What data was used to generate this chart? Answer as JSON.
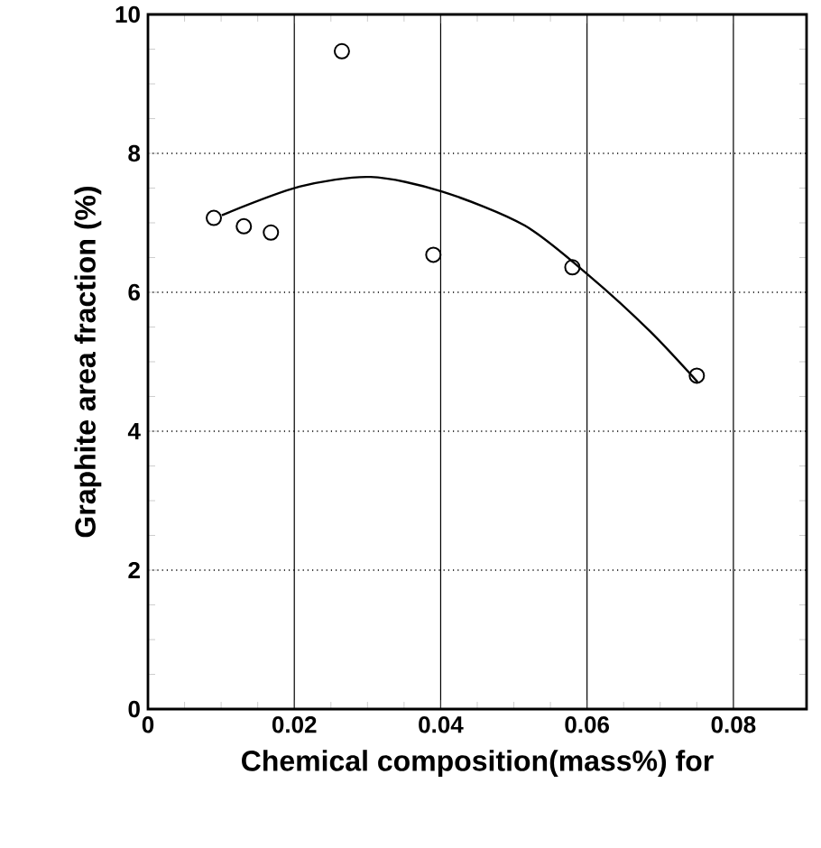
{
  "chart_data": {
    "type": "scatter",
    "xlabel": "Chemical composition(mass%) for",
    "ylabel": "Graphite area fraction (%)",
    "xlim": [
      0,
      0.09
    ],
    "xticks": [
      {
        "value": 0,
        "label": "0"
      },
      0.02,
      0.04,
      0.06,
      0.08
    ],
    "ylim": [
      0,
      10
    ],
    "yticks": [
      0,
      2,
      4,
      6,
      8,
      10
    ],
    "grid": true,
    "series": [
      {
        "marker": "circle",
        "color": "#000000",
        "x": [
          0.009,
          0.0131,
          0.0168,
          0.0265,
          0.039,
          0.058,
          0.075
        ],
        "values": [
          7.07,
          6.95,
          6.86,
          9.47,
          6.54,
          6.36,
          4.8
        ]
      },
      {
        "type": "line",
        "marker": "none",
        "color": "#000000",
        "x": [
          0.0101,
          0.0207,
          0.0304,
          0.0402,
          0.0515,
          0.0605,
          0.0686,
          0.0751
        ],
        "values": [
          7.11,
          7.52,
          7.66,
          7.45,
          6.96,
          6.22,
          5.44,
          4.71
        ]
      }
    ]
  }
}
